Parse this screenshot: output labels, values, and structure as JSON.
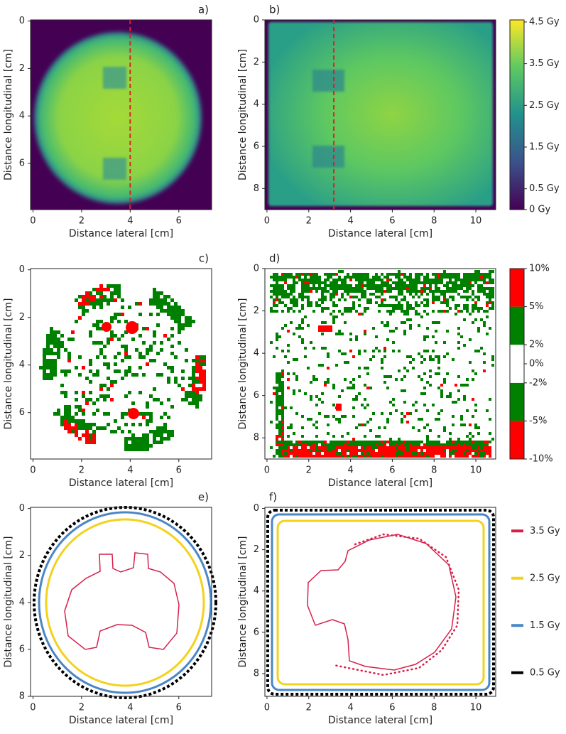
{
  "chart_data": [
    {
      "type": "heatmap",
      "panel_label": "a)",
      "xlabel": "Distance lateral [cm]",
      "ylabel": "Distance longitudinal [cm]",
      "xlim": [
        -0.1,
        7.35
      ],
      "ylim": [
        -0.05,
        7.95
      ],
      "y_inverted": true,
      "xticks": [
        0,
        2,
        4,
        6
      ],
      "yticks": [
        0,
        2,
        4,
        6
      ],
      "reference_x": 4,
      "reference_color": "#e0202a"
    },
    {
      "type": "heatmap",
      "panel_label": "b)",
      "xlabel": "Distance lateral [cm]",
      "ylabel": "Distance longitudinal [cm]",
      "xlim": [
        -0.1,
        10.95
      ],
      "ylim": [
        0,
        9
      ],
      "y_inverted": true,
      "xticks": [
        0,
        2,
        4,
        6,
        8,
        10
      ],
      "yticks": [
        0,
        2,
        4,
        6,
        8
      ],
      "reference_x": 3.2,
      "reference_color": "#e0202a",
      "colorbar": {
        "lim": [
          0,
          4.55
        ],
        "ticks": [
          {
            "value": 4.5,
            "label": "4.5 Gy"
          },
          {
            "value": 3.5,
            "label": "3.5 Gy"
          },
          {
            "value": 2.5,
            "label": "2.5 Gy"
          },
          {
            "value": 1.5,
            "label": "1.5 Gy"
          },
          {
            "value": 0.5,
            "label": "0.5 Gy"
          },
          {
            "value": 0,
            "label": "0 Gy"
          }
        ]
      }
    },
    {
      "type": "heatmap",
      "panel_label": "c)",
      "xlabel": "Distance lateral [cm]",
      "ylabel": "Distance longitudinal [cm]",
      "xlim": [
        -0.1,
        7.35
      ],
      "ylim": [
        -0.05,
        7.95
      ],
      "y_inverted": true,
      "xticks": [
        0,
        2,
        4,
        6
      ],
      "yticks": [
        0,
        2,
        4,
        6
      ]
    },
    {
      "type": "heatmap",
      "panel_label": "d)",
      "xlabel": "Distance lateral [cm]",
      "ylabel": "Distance longitudinal [cm]",
      "xlim": [
        -0.1,
        10.95
      ],
      "ylim": [
        0,
        9
      ],
      "y_inverted": true,
      "xticks": [
        0,
        2,
        4,
        6,
        8,
        10
      ],
      "yticks": [
        0,
        2,
        4,
        6,
        8
      ],
      "colorbar": {
        "boundaries": [
          -10,
          -5,
          -2,
          2,
          5,
          10
        ],
        "colors": [
          "#ff0000",
          "#008000",
          "#ffffff",
          "#008000",
          "#ff0000"
        ],
        "ticks": [
          {
            "value": 10,
            "label": "10%"
          },
          {
            "value": 5,
            "label": "5%"
          },
          {
            "value": 2,
            "label": "2%"
          },
          {
            "value": 0,
            "label": "0%"
          },
          {
            "value": -2,
            "label": "-2%"
          },
          {
            "value": -5,
            "label": "-5%"
          },
          {
            "value": -10,
            "label": "-10%"
          }
        ]
      }
    },
    {
      "type": "contour",
      "panel_label": "e)",
      "xlabel": "Distance lateral [cm]",
      "ylabel": "Distance longitudinal [cm]",
      "xlim": [
        -0.1,
        7.35
      ],
      "ylim": [
        -0.05,
        8
      ],
      "y_inverted": true,
      "xticks": [
        0,
        2,
        4,
        6
      ],
      "yticks": [
        0,
        2,
        4,
        6,
        8
      ]
    },
    {
      "type": "contour",
      "panel_label": "f)",
      "xlabel": "Distance lateral [cm]",
      "ylabel": "Distance longitudinal [cm]",
      "xlim": [
        -0.1,
        10.95
      ],
      "ylim": [
        -0.05,
        9.1
      ],
      "y_inverted": true,
      "xticks": [
        0,
        2,
        4,
        6,
        8,
        10
      ],
      "yticks": [
        0,
        2,
        4,
        6,
        8
      ],
      "series": [
        {
          "name": "3.5 Gy",
          "color": "#d6204b"
        },
        {
          "name": "2.5 Gy",
          "color": "#f2d21c"
        },
        {
          "name": "1.5 Gy",
          "color": "#4a86c5"
        },
        {
          "name": "0.5 Gy",
          "color": "#000000"
        }
      ]
    }
  ]
}
